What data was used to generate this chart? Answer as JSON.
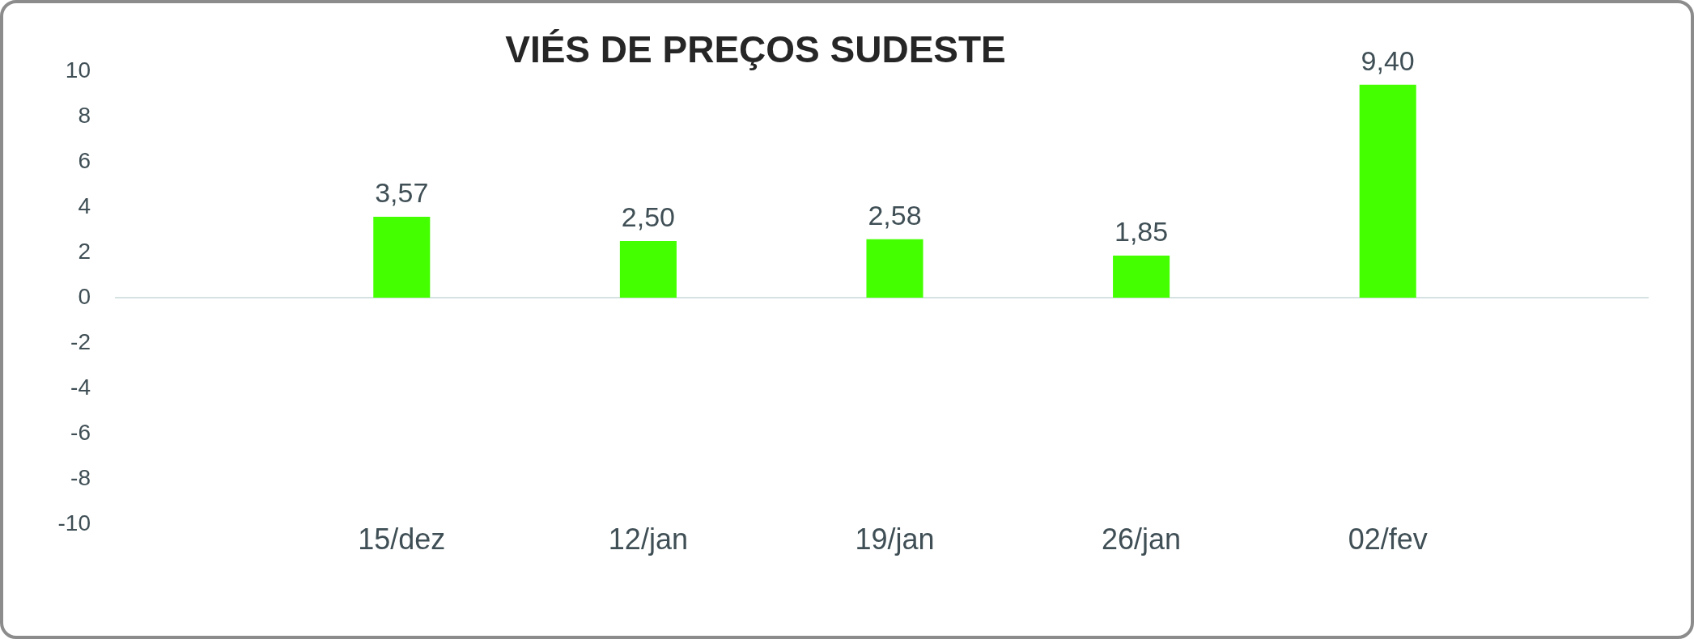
{
  "chart_data": {
    "type": "bar",
    "title": "VIÉS DE PREÇOS SUDESTE",
    "categories": [
      "15/dez",
      "12/jan",
      "19/jan",
      "26/jan",
      "02/fev"
    ],
    "values": [
      3.57,
      2.5,
      2.58,
      1.85,
      9.4
    ],
    "value_labels": [
      "3,57",
      "2,50",
      "2,58",
      "1,85",
      "9,40"
    ],
    "color": "#44ff00",
    "ylim": [
      -10,
      10
    ],
    "yticks": [
      -10,
      -8,
      -6,
      -4,
      -2,
      0,
      2,
      4,
      6,
      8,
      10
    ],
    "grid": false,
    "legend": false,
    "ref_lines": [
      {
        "axis": "y",
        "value": 0,
        "color": "#d6e2e2"
      }
    ]
  }
}
